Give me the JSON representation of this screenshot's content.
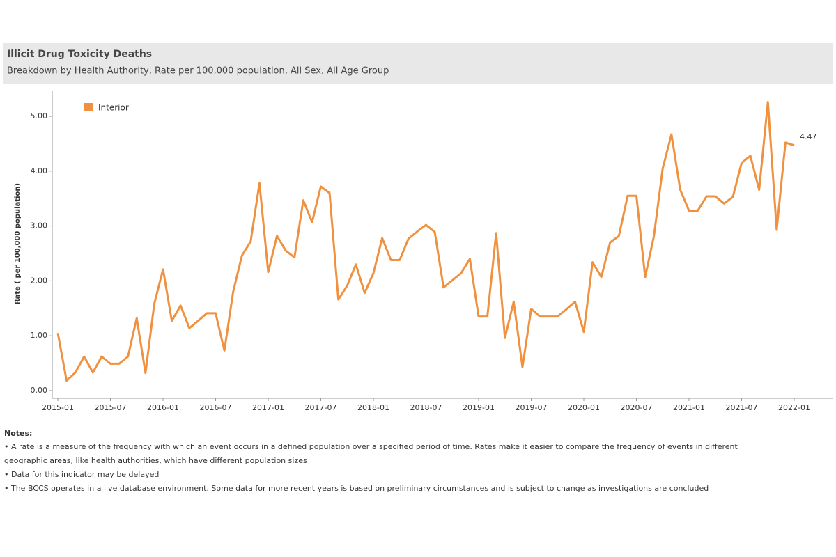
{
  "header": {
    "title": "Illicit Drug Toxicity Deaths",
    "subtitle": "Breakdown by Health Authority, Rate per 100,000 population, All  Sex,  All Age Group"
  },
  "chart_data": {
    "type": "line",
    "ylabel": "Rate ( per 100,000 population)",
    "categories": [
      "2015-01",
      null,
      null,
      null,
      null,
      null,
      "2015-07",
      null,
      null,
      null,
      null,
      null,
      "2016-01",
      null,
      null,
      null,
      null,
      null,
      "2016-07",
      null,
      null,
      null,
      null,
      null,
      "2017-01",
      null,
      null,
      null,
      null,
      null,
      "2017-07",
      null,
      null,
      null,
      null,
      null,
      "2018-01",
      null,
      null,
      null,
      null,
      null,
      "2018-07",
      null,
      null,
      null,
      null,
      null,
      "2019-01",
      null,
      null,
      null,
      null,
      null,
      "2019-07",
      null,
      null,
      null,
      null,
      null,
      "2020-01",
      null,
      null,
      null,
      null,
      null,
      "2020-07",
      null,
      null,
      null,
      null,
      null,
      "2021-01",
      null,
      null,
      null,
      null,
      null,
      "2021-07",
      null,
      null,
      null,
      null,
      null,
      "2022-01"
    ],
    "series": [
      {
        "name": "Interior",
        "color": "#f0913f",
        "values": [
          1.05,
          0.18,
          0.33,
          0.62,
          0.33,
          0.62,
          0.49,
          0.49,
          0.62,
          1.32,
          0.32,
          1.58,
          2.21,
          1.27,
          1.55,
          1.14,
          1.27,
          1.41,
          1.41,
          0.73,
          1.8,
          2.46,
          2.72,
          3.78,
          2.16,
          2.82,
          2.55,
          2.43,
          3.47,
          3.07,
          3.72,
          3.6,
          1.66,
          1.91,
          2.3,
          1.78,
          2.14,
          2.78,
          2.38,
          2.38,
          2.77,
          2.9,
          3.02,
          2.89,
          1.88,
          2.01,
          2.14,
          2.4,
          1.35,
          1.35,
          2.87,
          0.96,
          1.62,
          0.43,
          1.49,
          1.35,
          1.35,
          1.35,
          1.48,
          1.62,
          1.07,
          2.34,
          2.07,
          2.7,
          2.82,
          3.55,
          3.55,
          2.07,
          2.82,
          4.05,
          4.67,
          3.66,
          3.28,
          3.28,
          3.54,
          3.54,
          3.41,
          3.53,
          4.15,
          4.28,
          3.66,
          5.26,
          2.93,
          4.52,
          4.47
        ]
      }
    ],
    "ylim": [
      -0.14,
      5.47
    ],
    "yticks": [
      {
        "value": 0,
        "label": "0.00"
      },
      {
        "value": 1,
        "label": "1.00"
      },
      {
        "value": 2,
        "label": "2.00"
      },
      {
        "value": 3,
        "label": "3.00"
      },
      {
        "value": 4,
        "label": "4.00"
      },
      {
        "value": 5,
        "label": "5.00"
      }
    ],
    "legend": "top-left"
  },
  "notes": {
    "heading": "Notes:",
    "items": [
      "• A rate  is a measure of the frequency with which an event occurs in a defined population over a specified period of time. Rates make it easier to compare the frequency of events in different",
      "geographic areas, like health authorities, which have different population sizes",
      "• Data for this indicator may be delayed",
      "• The BCCS operates in a live database environment. Some data for more recent years is based on preliminary circumstances and is subject to change as investigations are concluded"
    ]
  }
}
